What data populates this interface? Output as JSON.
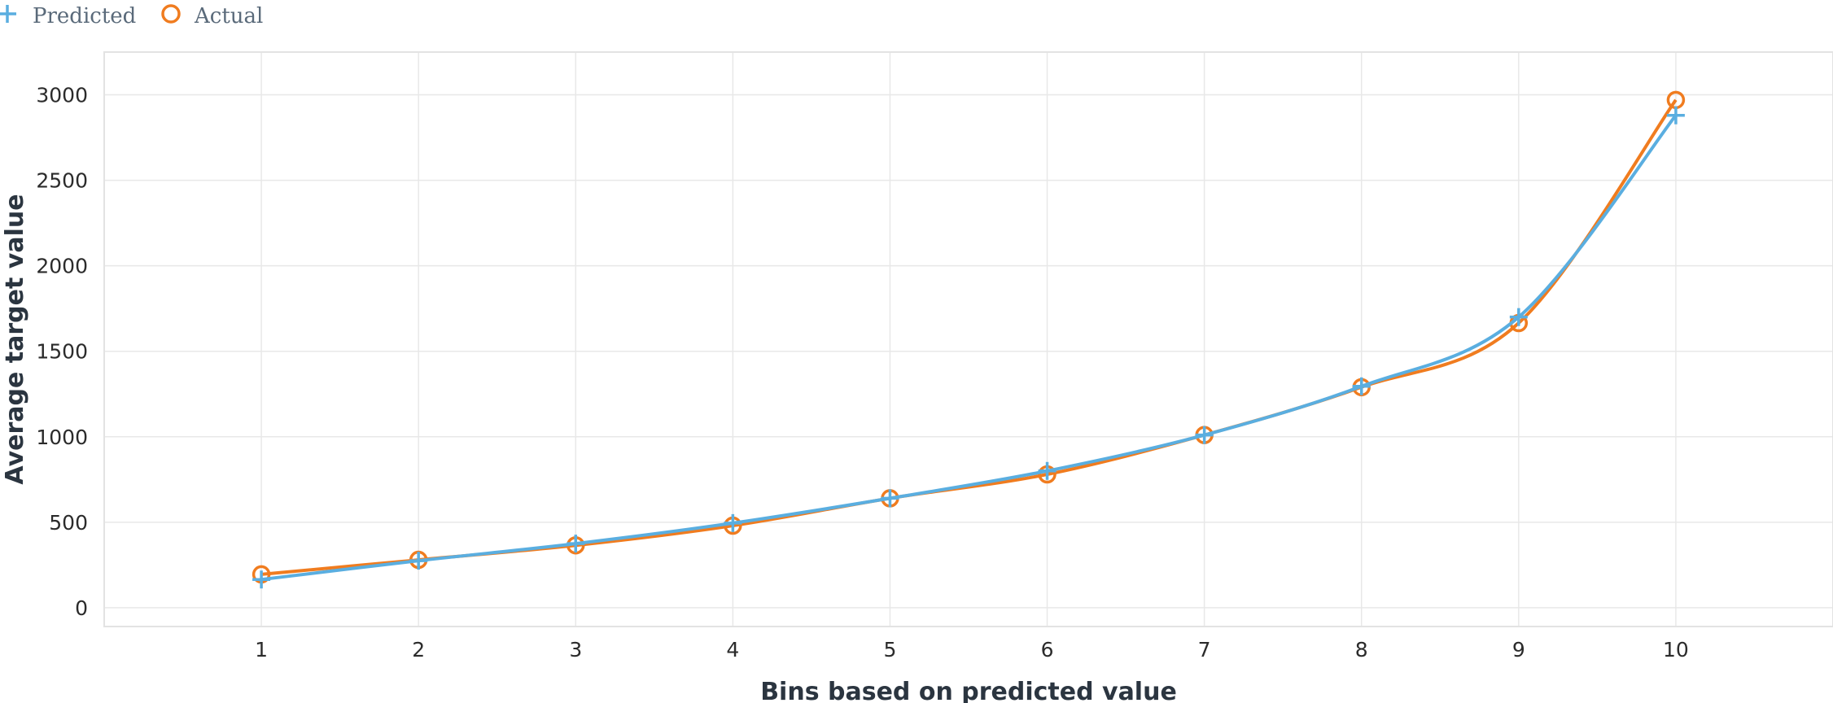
{
  "colors": {
    "predicted": "#5aaee0",
    "actual": "#f07c1f"
  },
  "chart_data": {
    "type": "line",
    "title": "",
    "xlabel": "Bins based on predicted value",
    "ylabel": "Average target value",
    "x": [
      1,
      2,
      3,
      4,
      5,
      6,
      7,
      8,
      9,
      10
    ],
    "x_tick_labels": [
      "1",
      "2",
      "3",
      "4",
      "5",
      "6",
      "7",
      "8",
      "9",
      "10"
    ],
    "y_tick_labels": [
      "0",
      "500",
      "1000",
      "1500",
      "2000",
      "2500",
      "3000"
    ],
    "y_ticks": [
      0,
      500,
      1000,
      1500,
      2000,
      2500,
      3000
    ],
    "xlim": [
      0,
      11
    ],
    "ylim": [
      -110,
      3250
    ],
    "grid": true,
    "legend_position": "top-left",
    "series": [
      {
        "name": "Predicted",
        "marker": "plus",
        "values": [
          165,
          275,
          375,
          495,
          640,
          800,
          1010,
          1295,
          1700,
          2880
        ]
      },
      {
        "name": "Actual",
        "marker": "circle",
        "values": [
          195,
          280,
          365,
          480,
          640,
          780,
          1010,
          1290,
          1665,
          2970
        ]
      }
    ]
  }
}
